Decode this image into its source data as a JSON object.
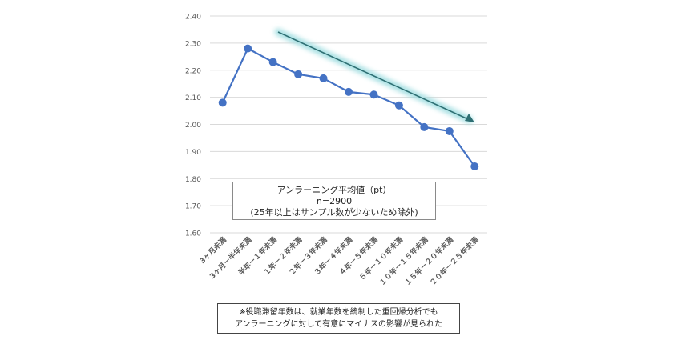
{
  "chart_data": {
    "type": "line",
    "categories": [
      "3ヶ月未満",
      "3ヶ月－半年未満",
      "半年－１年未満",
      "１年－２年未満",
      "２年－３年未満",
      "３年－４年未満",
      "４年－５年未満",
      "５年－１０年未満",
      "１０年－１５年未満",
      "１５年－２０年未満",
      "２０年－２５年未満"
    ],
    "values": [
      2.08,
      2.28,
      2.23,
      2.185,
      2.17,
      2.12,
      2.11,
      2.07,
      1.99,
      1.975,
      1.845
    ],
    "ylim": [
      1.6,
      2.4
    ],
    "yticks": [
      "1.60",
      "1.70",
      "1.80",
      "1.90",
      "2.00",
      "2.10",
      "2.20",
      "2.30",
      "2.40"
    ],
    "grid": true,
    "title": "",
    "xlabel": "",
    "ylabel": "",
    "series_color": "#4472c4",
    "trend_arrow_color": "#2e6f73"
  },
  "legend_box": {
    "line1": "アンラーニング平均値（pt）",
    "line2": "n=2900",
    "line3": "(25年以上はサンプル数が少ないため除外)"
  },
  "note": {
    "line1": "※役職滞留年数は、就業年数を統制した重回帰分析でも",
    "line2": "アンラーニングに対して有意にマイナスの影響が見られた"
  }
}
